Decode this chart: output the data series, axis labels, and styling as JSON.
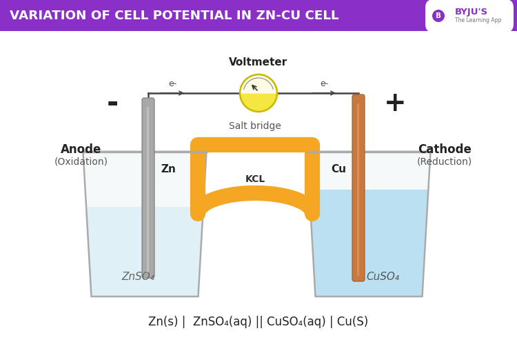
{
  "title": "VARIATION OF CELL POTENTIAL IN ZN-CU CELL",
  "title_bg_color": "#8B2FC9",
  "title_text_color": "#FFFFFF",
  "bg_color": "#FFFFFF",
  "byju_logo_color": "#8B2FC9",
  "bottom_formula": "Zn(s) |  ZnSO₄(aq) || CuSO₄(aq) | Cu(S)",
  "voltmeter_label": "Voltmeter",
  "salt_bridge_label": "Salt bridge",
  "kcl_label": "KCL",
  "anode_label": "Anode",
  "anode_sub": "(Oxidation)",
  "cathode_label": "Cathode",
  "cathode_sub": "(Reduction)",
  "zn_label": "Zn",
  "cu_label": "Cu",
  "znso4_label": "ZnSO₄",
  "cuso4_label": "CuSO₄",
  "minus_sign": "-",
  "plus_sign": "+",
  "e_left": "e-",
  "e_right": "e-",
  "salt_bridge_color": "#F5A623",
  "salt_bridge_color2": "#E8950F",
  "zn_electrode_color": "#A8A8A8",
  "zn_electrode_dark": "#787878",
  "cu_electrode_color": "#C87941",
  "cu_electrode_dark": "#A05A20",
  "beaker_outline_color": "#AAAAAA",
  "beaker_fill_color": "#F0F5F7",
  "zn_solution_color": "#D8EEF5",
  "cu_solution_color": "#A8D8F0",
  "voltmeter_body_color": "#F5E642",
  "voltmeter_edge_color": "#C8B800",
  "wire_color": "#444444",
  "text_dark": "#222222",
  "text_mid": "#555555"
}
